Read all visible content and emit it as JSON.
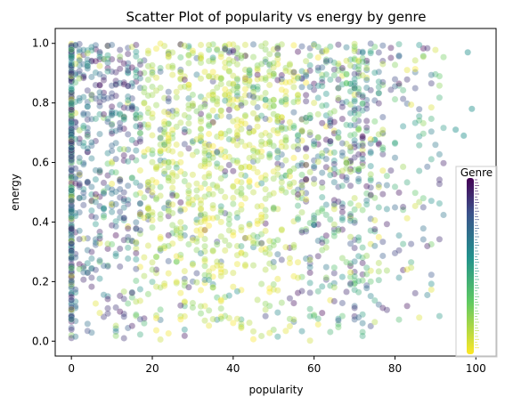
{
  "chart_data": {
    "type": "scatter",
    "title": "Scatter Plot of popularity vs energy by genre",
    "xlabel": "popularity",
    "ylabel": "energy",
    "xlim": [
      -4,
      105
    ],
    "ylim": [
      -0.05,
      1.05
    ],
    "xticks": [
      "0",
      "20",
      "40",
      "60",
      "80",
      "100"
    ],
    "yticks": [
      "0.0",
      "0.2",
      "0.4",
      "0.6",
      "0.8",
      "1.0"
    ],
    "grid": false,
    "legend": {
      "title": "Genre",
      "placement": "right"
    },
    "colormap": "viridis",
    "colors": {
      "low": "#fde725",
      "mid": "#21918c",
      "high": "#440154"
    },
    "distribution": {
      "popularity_range": [
        0,
        100
      ],
      "energy_range": [
        0,
        1
      ],
      "dense_popularity_range": [
        0,
        70
      ],
      "isolated_points": [
        {
          "x": 98,
          "y": 0.97
        },
        {
          "x": 99,
          "y": 0.78
        },
        {
          "x": 97,
          "y": 0.69
        },
        {
          "x": 95,
          "y": 0.71
        }
      ]
    }
  }
}
